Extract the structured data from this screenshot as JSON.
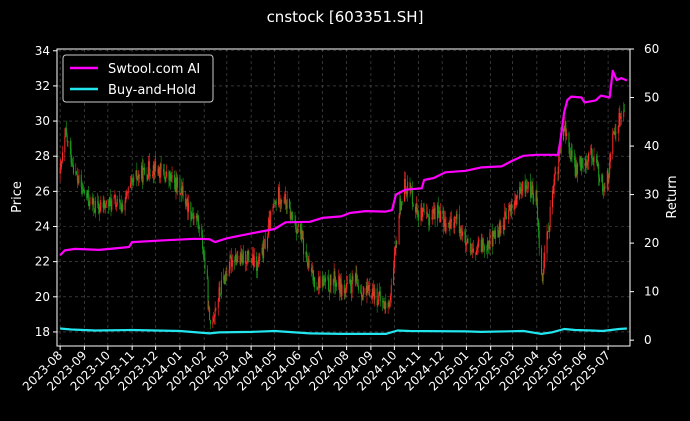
{
  "chart_data": {
    "type": "line",
    "title": "cnstock [603351.SH]",
    "xlabel": "",
    "ylabel": "Price",
    "y2label": "Return",
    "ylim": [
      17.2,
      34.1
    ],
    "y2lim": [
      -1.2,
      60
    ],
    "grid": true,
    "legend_position": "top-left",
    "background": "#000000",
    "x_tick_labels": [
      "2023-08",
      "2023-09",
      "2023-10",
      "2023-11",
      "2023-12",
      "2024-01",
      "2024-02",
      "2024-03",
      "2024-04",
      "2024-05",
      "2024-06",
      "2024-07",
      "2024-08",
      "2024-09",
      "2024-10",
      "2024-11",
      "2024-12",
      "2025-01",
      "2025-02",
      "2025-03",
      "2025-04",
      "2025-05",
      "2025-06",
      "2025-07"
    ],
    "y_ticks": [
      18,
      20,
      22,
      24,
      26,
      28,
      30,
      32,
      34
    ],
    "y2_ticks": [
      0,
      10,
      20,
      30,
      40,
      50,
      60
    ],
    "price_colors": {
      "up": "#ff2a2a",
      "down": "#1a9e1a"
    },
    "price_series_approx": [
      [
        "2023-08-01",
        27.0
      ],
      [
        "2023-08-08",
        29.2
      ],
      [
        "2023-08-15",
        28.0
      ],
      [
        "2023-08-22",
        26.8
      ],
      [
        "2023-08-29",
        26.1
      ],
      [
        "2023-09-05",
        25.6
      ],
      [
        "2023-09-12",
        25.2
      ],
      [
        "2023-09-19",
        25.0
      ],
      [
        "2023-09-26",
        25.2
      ],
      [
        "2023-10-10",
        25.4
      ],
      [
        "2023-10-17",
        25.0
      ],
      [
        "2023-10-24",
        25.6
      ],
      [
        "2023-10-31",
        26.3
      ],
      [
        "2023-11-07",
        26.8
      ],
      [
        "2023-11-14",
        27.0
      ],
      [
        "2023-11-21",
        27.2
      ],
      [
        "2023-11-28",
        27.4
      ],
      [
        "2023-12-05",
        27.2
      ],
      [
        "2023-12-12",
        26.9
      ],
      [
        "2023-12-19",
        26.7
      ],
      [
        "2023-12-26",
        26.4
      ],
      [
        "2024-01-02",
        26.2
      ],
      [
        "2024-01-09",
        25.4
      ],
      [
        "2024-01-16",
        24.8
      ],
      [
        "2024-01-23",
        24.4
      ],
      [
        "2024-01-30",
        23.0
      ],
      [
        "2024-02-05",
        20.5
      ],
      [
        "2024-02-08",
        18.3
      ],
      [
        "2024-02-19",
        20.0
      ],
      [
        "2024-02-26",
        21.0
      ],
      [
        "2024-03-04",
        21.8
      ],
      [
        "2024-03-11",
        22.4
      ],
      [
        "2024-03-18",
        22.0
      ],
      [
        "2024-03-25",
        22.3
      ],
      [
        "2024-04-01",
        22.1
      ],
      [
        "2024-04-08",
        21.7
      ],
      [
        "2024-04-15",
        22.4
      ],
      [
        "2024-04-22",
        23.6
      ],
      [
        "2024-04-29",
        25.0
      ],
      [
        "2024-05-06",
        25.8
      ],
      [
        "2024-05-13",
        25.6
      ],
      [
        "2024-05-20",
        24.8
      ],
      [
        "2024-05-27",
        24.2
      ],
      [
        "2024-06-03",
        23.6
      ],
      [
        "2024-06-10",
        22.2
      ],
      [
        "2024-06-17",
        21.2
      ],
      [
        "2024-06-24",
        20.8
      ],
      [
        "2024-07-01",
        20.9
      ],
      [
        "2024-07-08",
        20.6
      ],
      [
        "2024-07-15",
        21.0
      ],
      [
        "2024-07-22",
        20.7
      ],
      [
        "2024-07-29",
        20.3
      ],
      [
        "2024-08-05",
        20.6
      ],
      [
        "2024-08-12",
        20.9
      ],
      [
        "2024-08-19",
        20.4
      ],
      [
        "2024-08-26",
        20.1
      ],
      [
        "2024-09-02",
        20.4
      ],
      [
        "2024-09-09",
        20.0
      ],
      [
        "2024-09-16",
        19.6
      ],
      [
        "2024-09-23",
        19.4
      ],
      [
        "2024-09-30",
        21.5
      ],
      [
        "2024-10-08",
        25.2
      ],
      [
        "2024-10-15",
        26.4
      ],
      [
        "2024-10-22",
        26.0
      ],
      [
        "2024-10-29",
        25.0
      ],
      [
        "2024-11-05",
        24.6
      ],
      [
        "2024-11-12",
        24.4
      ],
      [
        "2024-11-19",
        24.8
      ],
      [
        "2024-11-26",
        24.9
      ],
      [
        "2024-12-03",
        24.3
      ],
      [
        "2024-12-10",
        23.9
      ],
      [
        "2024-12-17",
        24.5
      ],
      [
        "2024-12-24",
        24.0
      ],
      [
        "2024-12-31",
        23.0
      ],
      [
        "2025-01-07",
        22.3
      ],
      [
        "2025-01-14",
        22.6
      ],
      [
        "2025-01-21",
        23.0
      ],
      [
        "2025-02-04",
        23.3
      ],
      [
        "2025-02-11",
        23.8
      ],
      [
        "2025-02-18",
        24.3
      ],
      [
        "2025-02-25",
        24.9
      ],
      [
        "2025-03-04",
        25.4
      ],
      [
        "2025-03-11",
        25.9
      ],
      [
        "2025-03-18",
        26.4
      ],
      [
        "2025-03-25",
        26.0
      ],
      [
        "2025-04-01",
        25.5
      ],
      [
        "2025-04-07",
        21.0
      ],
      [
        "2025-04-14",
        23.5
      ],
      [
        "2025-04-21",
        25.8
      ],
      [
        "2025-04-28",
        27.5
      ],
      [
        "2025-05-06",
        29.8
      ],
      [
        "2025-05-13",
        28.3
      ],
      [
        "2025-05-20",
        27.2
      ],
      [
        "2025-05-27",
        27.6
      ],
      [
        "2025-06-03",
        27.9
      ],
      [
        "2025-06-10",
        28.2
      ],
      [
        "2025-06-17",
        27.4
      ],
      [
        "2025-06-24",
        26.3
      ],
      [
        "2025-07-01",
        26.8
      ],
      [
        "2025-07-08",
        29.2
      ],
      [
        "2025-07-15",
        30.2
      ],
      [
        "2025-07-22",
        30.6
      ]
    ],
    "series": [
      {
        "name": "Swtool.com AI",
        "color": "#ff00ff",
        "axis": "right",
        "points": [
          [
            "2023-08-01",
            17.5
          ],
          [
            "2023-08-07",
            18.5
          ],
          [
            "2023-08-20",
            18.8
          ],
          [
            "2023-09-20",
            18.6
          ],
          [
            "2023-10-15",
            19.0
          ],
          [
            "2023-10-28",
            19.2
          ],
          [
            "2023-11-01",
            20.2
          ],
          [
            "2023-12-15",
            20.6
          ],
          [
            "2024-01-20",
            20.9
          ],
          [
            "2024-02-08",
            20.8
          ],
          [
            "2024-02-15",
            20.2
          ],
          [
            "2024-03-01",
            21.0
          ],
          [
            "2024-04-01",
            22.0
          ],
          [
            "2024-05-01",
            22.9
          ],
          [
            "2024-05-15",
            24.3
          ],
          [
            "2024-06-15",
            24.4
          ],
          [
            "2024-07-01",
            25.2
          ],
          [
            "2024-07-25",
            25.5
          ],
          [
            "2024-08-05",
            26.2
          ],
          [
            "2024-08-25",
            26.6
          ],
          [
            "2024-09-20",
            26.5
          ],
          [
            "2024-09-28",
            26.8
          ],
          [
            "2024-10-03",
            30.0
          ],
          [
            "2024-10-15",
            31.0
          ],
          [
            "2024-11-05",
            31.3
          ],
          [
            "2024-11-08",
            33.0
          ],
          [
            "2024-11-20",
            33.4
          ],
          [
            "2024-12-05",
            34.6
          ],
          [
            "2024-12-31",
            34.9
          ],
          [
            "2025-01-20",
            35.6
          ],
          [
            "2025-02-15",
            35.8
          ],
          [
            "2025-03-01",
            37.0
          ],
          [
            "2025-03-15",
            38.0
          ],
          [
            "2025-04-01",
            38.2
          ],
          [
            "2025-04-28",
            38.2
          ],
          [
            "2025-05-01",
            41.0
          ],
          [
            "2025-05-06",
            47.0
          ],
          [
            "2025-05-10",
            49.5
          ],
          [
            "2025-05-15",
            50.2
          ],
          [
            "2025-05-28",
            50.0
          ],
          [
            "2025-06-01",
            49.0
          ],
          [
            "2025-06-15",
            49.4
          ],
          [
            "2025-06-22",
            50.4
          ],
          [
            "2025-07-03",
            50.0
          ],
          [
            "2025-07-07",
            55.5
          ],
          [
            "2025-07-12",
            53.6
          ],
          [
            "2025-07-18",
            54.0
          ],
          [
            "2025-07-25",
            53.5
          ]
        ]
      },
      {
        "name": "Buy-and-Hold",
        "color": "#22e5ee",
        "axis": "right",
        "points": [
          [
            "2023-08-01",
            2.4
          ],
          [
            "2023-08-15",
            2.2
          ],
          [
            "2023-09-15",
            2.0
          ],
          [
            "2023-11-01",
            2.1
          ],
          [
            "2024-01-01",
            1.9
          ],
          [
            "2024-02-08",
            1.4
          ],
          [
            "2024-02-20",
            1.6
          ],
          [
            "2024-04-01",
            1.7
          ],
          [
            "2024-05-01",
            1.9
          ],
          [
            "2024-06-15",
            1.4
          ],
          [
            "2024-07-25",
            1.3
          ],
          [
            "2024-09-20",
            1.3
          ],
          [
            "2024-10-05",
            2.0
          ],
          [
            "2024-10-20",
            1.9
          ],
          [
            "2024-12-31",
            1.8
          ],
          [
            "2025-01-20",
            1.7
          ],
          [
            "2025-03-15",
            1.9
          ],
          [
            "2025-04-07",
            1.3
          ],
          [
            "2025-04-20",
            1.6
          ],
          [
            "2025-05-06",
            2.3
          ],
          [
            "2025-05-20",
            2.1
          ],
          [
            "2025-06-10",
            2.0
          ],
          [
            "2025-06-24",
            1.9
          ],
          [
            "2025-07-15",
            2.3
          ],
          [
            "2025-07-25",
            2.4
          ]
        ]
      }
    ]
  }
}
